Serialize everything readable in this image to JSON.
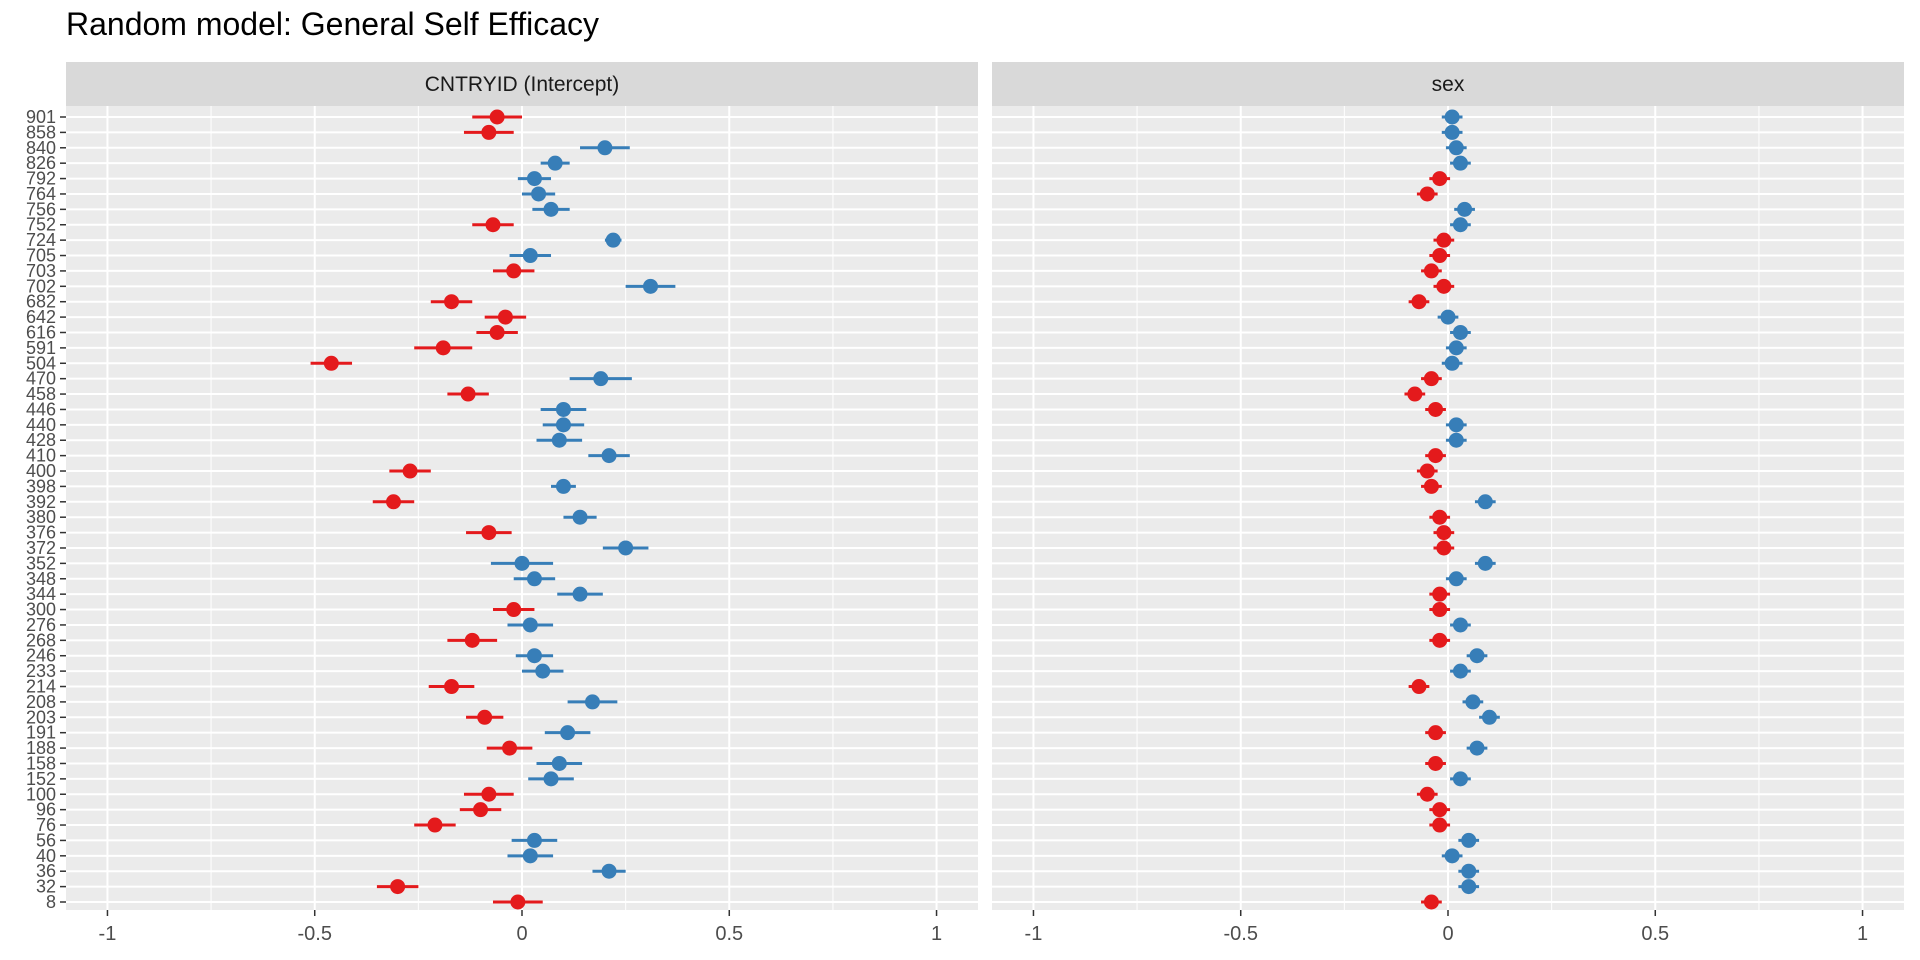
{
  "chart_data": {
    "type": "scatter",
    "subtype": "forest-plot-with-error-bars",
    "title": "Random model: General Self Efficacy",
    "xlim": [
      -1.1,
      1.1
    ],
    "x_ticks": [
      -1,
      -0.5,
      0,
      0.5,
      1
    ],
    "x_tick_labels": [
      "-1",
      "-0.5",
      "0",
      "0.5",
      "1"
    ],
    "grid": true,
    "colors": {
      "negative": "#e41a1c",
      "positive": "#377eb8",
      "panel_bg": "#ebebeb",
      "strip_bg": "#d9d9d9",
      "grid": "#ffffff"
    },
    "categories": [
      "901",
      "858",
      "840",
      "826",
      "792",
      "764",
      "756",
      "752",
      "724",
      "705",
      "703",
      "702",
      "682",
      "642",
      "616",
      "591",
      "504",
      "470",
      "458",
      "446",
      "440",
      "428",
      "410",
      "400",
      "398",
      "392",
      "380",
      "376",
      "372",
      "352",
      "348",
      "344",
      "300",
      "276",
      "268",
      "246",
      "233",
      "214",
      "208",
      "203",
      "191",
      "188",
      "158",
      "152",
      "100",
      "96",
      "76",
      "56",
      "40",
      "36",
      "32",
      "8"
    ],
    "panels": [
      {
        "label": "CNTRYID (Intercept)",
        "values": [
          -0.06,
          -0.08,
          0.2,
          0.08,
          0.03,
          0.04,
          0.07,
          -0.07,
          0.22,
          0.02,
          -0.02,
          0.31,
          -0.17,
          -0.04,
          -0.06,
          -0.19,
          -0.46,
          0.19,
          -0.13,
          0.1,
          0.1,
          0.09,
          0.21,
          -0.27,
          0.1,
          -0.31,
          0.14,
          -0.08,
          0.25,
          0.0,
          0.03,
          0.14,
          -0.02,
          0.02,
          -0.12,
          0.03,
          0.05,
          -0.17,
          0.17,
          -0.09,
          0.11,
          -0.03,
          0.09,
          0.07,
          -0.08,
          -0.1,
          -0.21,
          0.03,
          0.02,
          0.21,
          -0.3,
          -0.01
        ],
        "errors": [
          0.06,
          0.06,
          0.06,
          0.035,
          0.04,
          0.04,
          0.045,
          0.05,
          0.02,
          0.05,
          0.05,
          0.06,
          0.05,
          0.05,
          0.05,
          0.07,
          0.05,
          0.075,
          0.05,
          0.055,
          0.05,
          0.055,
          0.05,
          0.05,
          0.03,
          0.05,
          0.04,
          0.055,
          0.055,
          0.075,
          0.05,
          0.055,
          0.05,
          0.055,
          0.06,
          0.045,
          0.05,
          0.055,
          0.06,
          0.045,
          0.055,
          0.055,
          0.055,
          0.055,
          0.06,
          0.05,
          0.05,
          0.055,
          0.055,
          0.04,
          0.05,
          0.06
        ]
      },
      {
        "label": "sex",
        "values": [
          0.01,
          0.01,
          0.02,
          0.03,
          -0.02,
          -0.05,
          0.04,
          0.03,
          -0.01,
          -0.02,
          -0.04,
          -0.01,
          -0.07,
          0.0,
          0.03,
          0.02,
          0.01,
          -0.04,
          -0.08,
          -0.03,
          0.02,
          0.02,
          -0.03,
          -0.05,
          -0.04,
          0.09,
          -0.02,
          -0.01,
          -0.01,
          0.09,
          0.02,
          -0.02,
          -0.02,
          0.03,
          -0.02,
          0.07,
          0.03,
          -0.07,
          0.06,
          0.1,
          -0.03,
          0.07,
          -0.03,
          0.03,
          -0.05,
          -0.02,
          -0.02,
          0.05,
          0.01,
          0.05,
          0.05,
          -0.04
        ]
      }
    ]
  }
}
